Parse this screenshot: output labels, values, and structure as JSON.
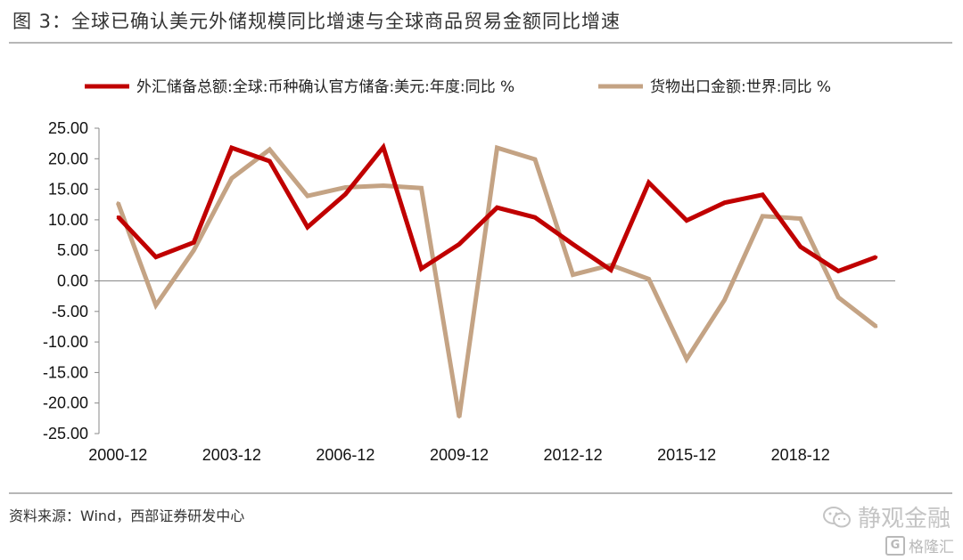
{
  "figure": {
    "title": "图 3：全球已确认美元外储规模同比增速与全球商品贸易金额同比增速",
    "source": "资料来源：Wind，西部证券研发中心"
  },
  "watermark": {
    "brand": "静观金融",
    "brand_icon": "wechat-icon",
    "site": "格隆汇",
    "site_icon": "g-logo-icon"
  },
  "chart_data": {
    "type": "line",
    "x": [
      "2000-12",
      "2001-12",
      "2002-12",
      "2003-12",
      "2004-12",
      "2005-12",
      "2006-12",
      "2007-12",
      "2008-12",
      "2009-12",
      "2010-12",
      "2011-12",
      "2012-12",
      "2013-12",
      "2014-12",
      "2015-12",
      "2016-12",
      "2017-12",
      "2018-12",
      "2019-12",
      "2020-12"
    ],
    "x_tick_labels": [
      "2000-12",
      "2003-12",
      "2006-12",
      "2009-12",
      "2012-12",
      "2015-12",
      "2018-12"
    ],
    "series": [
      {
        "name": "外汇储备总额:全球:币种确认官方储备:美元:年度:同比 %",
        "color": "#c00000",
        "values": [
          10.5,
          3.9,
          6.3,
          21.8,
          19.6,
          8.8,
          14.2,
          21.9,
          2.0,
          6.0,
          12.0,
          10.4,
          6.0,
          1.8,
          16.1,
          9.9,
          12.8,
          14.1,
          5.6,
          1.6,
          3.9
        ]
      },
      {
        "name": "货物出口金额:世界:同比 %",
        "color": "#c4a384",
        "values": [
          12.8,
          -4.0,
          5.0,
          16.8,
          21.5,
          13.9,
          15.3,
          15.6,
          15.2,
          -22.3,
          21.8,
          19.9,
          1.0,
          2.6,
          0.3,
          -12.8,
          -3.1,
          10.6,
          10.2,
          -2.7,
          -7.5
        ]
      }
    ],
    "y_ticks": [
      "25.00",
      "20.00",
      "15.00",
      "10.00",
      "5.00",
      "0.00",
      "-5.00",
      "-10.00",
      "-15.00",
      "-20.00",
      "-25.00"
    ],
    "ylim": [
      -25,
      25
    ],
    "grid": false,
    "legend_position": "top"
  }
}
